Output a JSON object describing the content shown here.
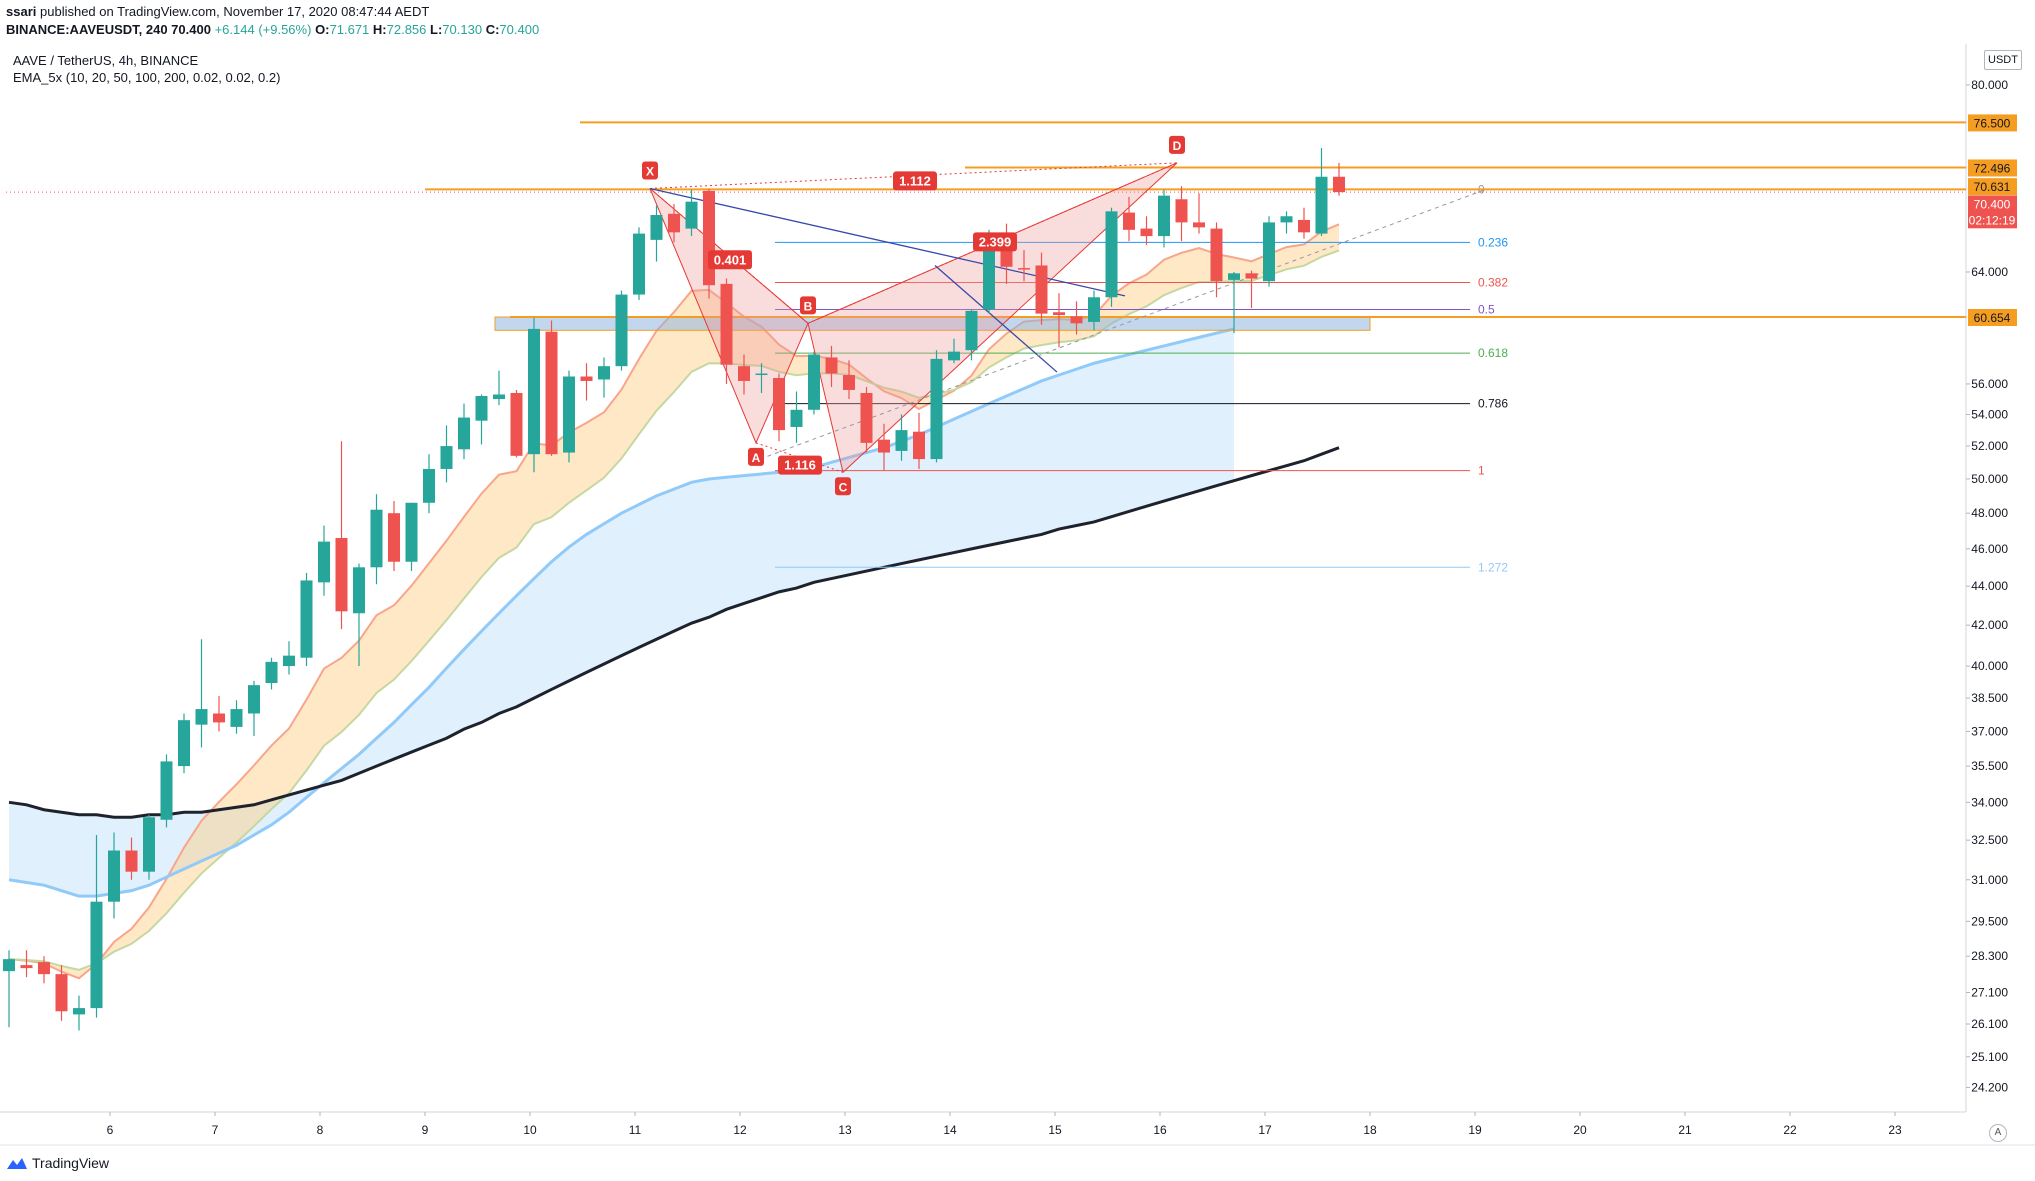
{
  "header": {
    "publisher": "ssari",
    "published_text": "published on TradingView.com, November 17, 2020 08:47:44 AEDT",
    "symbol_line": "BINANCE:AAVEUSDT, 240 70.400",
    "change": "+6.144 (+9.56%)",
    "ohlc": {
      "O": "71.671",
      "H": "72.856",
      "L": "70.130",
      "C": "70.400"
    }
  },
  "legend": {
    "title": "AAVE / TetherUS, 4h, BINANCE",
    "indicator": "EMA_5x (10, 20, 50, 100, 200, 0.02, 0.02, 0.2)"
  },
  "footer": {
    "brand": "TradingView"
  },
  "axis": {
    "unit": "USDT",
    "auto_label": "A"
  },
  "colors": {
    "up": "#26a69a",
    "down": "#ef5350",
    "orange": "#f59d21",
    "harmonic": "#e53935",
    "ema_dark": "#1e222d",
    "ema_blue": "#90caf9"
  },
  "chart_data": {
    "type": "candlestick",
    "title": "AAVE / TetherUS, 4h, BINANCE",
    "price_scale": "log",
    "ylim": [
      23.5,
      84
    ],
    "x_ticks": [
      "6",
      "7",
      "8",
      "9",
      "10",
      "11",
      "12",
      "13",
      "14",
      "15",
      "16",
      "17",
      "18",
      "19",
      "20",
      "21",
      "22",
      "23"
    ],
    "y_ticks": [
      "80.000",
      "64.000",
      "56.000",
      "54.000",
      "52.000",
      "50.000",
      "48.000",
      "46.000",
      "44.000",
      "42.000",
      "40.000",
      "38.500",
      "37.000",
      "35.500",
      "34.000",
      "32.500",
      "31.000",
      "29.500",
      "28.300",
      "27.100",
      "26.100",
      "25.100",
      "24.200"
    ],
    "price_labels": [
      {
        "value": "76.500",
        "color": "#f59d21"
      },
      {
        "value": "72.496",
        "color": "#f59d21"
      },
      {
        "value": "70.631",
        "color": "#f59d21"
      },
      {
        "value": "70.400",
        "color": "#ef5350"
      },
      {
        "value": "02:12:19",
        "color": "#ef5350"
      },
      {
        "value": "60.654",
        "color": "#f59d21"
      }
    ],
    "fib_levels": [
      {
        "label": "0",
        "price": 70.631,
        "color": "#9598a1"
      },
      {
        "label": "0.236",
        "price": 66.3,
        "color": "#2196f3"
      },
      {
        "label": "0.382",
        "price": 63.2,
        "color": "#ef5350"
      },
      {
        "label": "0.5",
        "price": 61.2,
        "color": "#7e57c2"
      },
      {
        "label": "0.618",
        "price": 58.1,
        "color": "#4caf50"
      },
      {
        "label": "0.786",
        "price": 54.7,
        "color": "#131722"
      },
      {
        "label": "1",
        "price": 50.5,
        "color": "#ef5350"
      },
      {
        "label": "1.272",
        "price": 45.0,
        "color": "#90caf9"
      }
    ],
    "harmonic": {
      "points": [
        {
          "label": "X",
          "price": 70.7
        },
        {
          "label": "A",
          "price": 52.2
        },
        {
          "label": "B",
          "price": 60.2
        },
        {
          "label": "C",
          "price": 50.4
        },
        {
          "label": "D",
          "price": 72.9
        }
      ],
      "ratios": [
        "0.401",
        "1.116",
        "2.399",
        "1.112"
      ]
    },
    "candles": [
      {
        "o": 27.8,
        "h": 28.5,
        "l": 26.0,
        "c": 28.2
      },
      {
        "o": 28.0,
        "h": 28.5,
        "l": 27.6,
        "c": 27.9
      },
      {
        "o": 28.1,
        "h": 28.3,
        "l": 27.4,
        "c": 27.7
      },
      {
        "o": 27.7,
        "h": 28.0,
        "l": 26.2,
        "c": 26.5
      },
      {
        "o": 26.4,
        "h": 27.0,
        "l": 25.9,
        "c": 26.6
      },
      {
        "o": 26.6,
        "h": 32.7,
        "l": 26.3,
        "c": 30.2
      },
      {
        "o": 30.2,
        "h": 32.8,
        "l": 29.6,
        "c": 32.1
      },
      {
        "o": 32.1,
        "h": 32.6,
        "l": 31.0,
        "c": 31.3
      },
      {
        "o": 31.3,
        "h": 33.5,
        "l": 31.0,
        "c": 33.4
      },
      {
        "o": 33.3,
        "h": 36.0,
        "l": 33.0,
        "c": 35.7
      },
      {
        "o": 35.5,
        "h": 37.8,
        "l": 35.2,
        "c": 37.5
      },
      {
        "o": 37.3,
        "h": 41.3,
        "l": 36.3,
        "c": 38.0
      },
      {
        "o": 37.8,
        "h": 38.6,
        "l": 37.0,
        "c": 37.4
      },
      {
        "o": 37.2,
        "h": 38.4,
        "l": 36.9,
        "c": 38.0
      },
      {
        "o": 37.8,
        "h": 39.3,
        "l": 36.8,
        "c": 39.1
      },
      {
        "o": 39.2,
        "h": 40.4,
        "l": 38.9,
        "c": 40.2
      },
      {
        "o": 40.0,
        "h": 41.2,
        "l": 39.6,
        "c": 40.5
      },
      {
        "o": 40.4,
        "h": 44.7,
        "l": 40.0,
        "c": 44.3
      },
      {
        "o": 44.2,
        "h": 47.3,
        "l": 43.5,
        "c": 46.4
      },
      {
        "o": 46.6,
        "h": 52.3,
        "l": 41.8,
        "c": 42.7
      },
      {
        "o": 42.6,
        "h": 45.2,
        "l": 40.0,
        "c": 45.0
      },
      {
        "o": 45.0,
        "h": 49.1,
        "l": 44.1,
        "c": 48.2
      },
      {
        "o": 48.0,
        "h": 48.7,
        "l": 44.8,
        "c": 45.3
      },
      {
        "o": 45.3,
        "h": 48.6,
        "l": 44.8,
        "c": 48.6
      },
      {
        "o": 48.6,
        "h": 51.5,
        "l": 48.0,
        "c": 50.6
      },
      {
        "o": 50.6,
        "h": 53.3,
        "l": 49.8,
        "c": 52.0
      },
      {
        "o": 51.8,
        "h": 54.7,
        "l": 51.2,
        "c": 53.8
      },
      {
        "o": 53.6,
        "h": 55.3,
        "l": 52.1,
        "c": 55.2
      },
      {
        "o": 55.0,
        "h": 56.9,
        "l": 54.6,
        "c": 55.3
      },
      {
        "o": 55.4,
        "h": 55.6,
        "l": 51.3,
        "c": 51.4
      },
      {
        "o": 51.5,
        "h": 60.6,
        "l": 50.4,
        "c": 59.8
      },
      {
        "o": 59.6,
        "h": 60.4,
        "l": 51.4,
        "c": 51.5
      },
      {
        "o": 51.6,
        "h": 56.9,
        "l": 51.0,
        "c": 56.5
      },
      {
        "o": 56.5,
        "h": 57.4,
        "l": 54.9,
        "c": 56.2
      },
      {
        "o": 56.3,
        "h": 57.8,
        "l": 55.1,
        "c": 57.2
      },
      {
        "o": 57.2,
        "h": 62.6,
        "l": 56.9,
        "c": 62.3
      },
      {
        "o": 62.3,
        "h": 67.5,
        "l": 61.9,
        "c": 67.0
      },
      {
        "o": 66.5,
        "h": 69.3,
        "l": 64.8,
        "c": 68.5
      },
      {
        "o": 68.6,
        "h": 69.4,
        "l": 66.3,
        "c": 67.1
      },
      {
        "o": 67.4,
        "h": 70.6,
        "l": 66.8,
        "c": 69.6
      },
      {
        "o": 70.5,
        "h": 70.7,
        "l": 62.0,
        "c": 63.0
      },
      {
        "o": 63.1,
        "h": 63.5,
        "l": 56.0,
        "c": 57.3
      },
      {
        "o": 57.2,
        "h": 58.0,
        "l": 55.3,
        "c": 56.2
      },
      {
        "o": 56.6,
        "h": 57.4,
        "l": 55.4,
        "c": 56.7
      },
      {
        "o": 56.4,
        "h": 56.7,
        "l": 52.3,
        "c": 53.0
      },
      {
        "o": 53.2,
        "h": 55.5,
        "l": 52.2,
        "c": 54.3
      },
      {
        "o": 54.3,
        "h": 58.2,
        "l": 54.0,
        "c": 58.0
      },
      {
        "o": 57.8,
        "h": 58.6,
        "l": 55.8,
        "c": 56.7
      },
      {
        "o": 56.6,
        "h": 57.6,
        "l": 55.0,
        "c": 55.6
      },
      {
        "o": 55.4,
        "h": 55.8,
        "l": 51.6,
        "c": 52.2
      },
      {
        "o": 52.4,
        "h": 53.4,
        "l": 50.5,
        "c": 51.6
      },
      {
        "o": 51.7,
        "h": 54.0,
        "l": 51.1,
        "c": 53.0
      },
      {
        "o": 52.9,
        "h": 54.1,
        "l": 50.6,
        "c": 51.2
      },
      {
        "o": 51.2,
        "h": 58.3,
        "l": 51.0,
        "c": 57.7
      },
      {
        "o": 57.6,
        "h": 59.1,
        "l": 57.4,
        "c": 58.2
      },
      {
        "o": 58.3,
        "h": 61.2,
        "l": 57.6,
        "c": 61.1
      },
      {
        "o": 61.2,
        "h": 67.3,
        "l": 60.9,
        "c": 66.5
      },
      {
        "o": 66.4,
        "h": 67.8,
        "l": 63.1,
        "c": 64.4
      },
      {
        "o": 64.3,
        "h": 65.7,
        "l": 63.3,
        "c": 64.2
      },
      {
        "o": 64.5,
        "h": 65.5,
        "l": 60.1,
        "c": 60.9
      },
      {
        "o": 61.0,
        "h": 62.4,
        "l": 58.5,
        "c": 60.8
      },
      {
        "o": 60.7,
        "h": 61.8,
        "l": 59.4,
        "c": 60.2
      },
      {
        "o": 60.3,
        "h": 62.6,
        "l": 59.7,
        "c": 62.1
      },
      {
        "o": 62.1,
        "h": 69.1,
        "l": 61.4,
        "c": 68.8
      },
      {
        "o": 68.7,
        "h": 70.0,
        "l": 66.4,
        "c": 67.3
      },
      {
        "o": 67.4,
        "h": 68.4,
        "l": 66.1,
        "c": 66.8
      },
      {
        "o": 66.8,
        "h": 70.6,
        "l": 65.9,
        "c": 70.1
      },
      {
        "o": 69.8,
        "h": 70.9,
        "l": 66.4,
        "c": 67.9
      },
      {
        "o": 67.9,
        "h": 70.3,
        "l": 67.0,
        "c": 67.5
      },
      {
        "o": 67.4,
        "h": 67.9,
        "l": 62.1,
        "c": 63.3
      },
      {
        "o": 63.4,
        "h": 64.0,
        "l": 59.5,
        "c": 63.9
      },
      {
        "o": 63.9,
        "h": 64.1,
        "l": 61.3,
        "c": 63.5
      },
      {
        "o": 63.3,
        "h": 68.4,
        "l": 62.9,
        "c": 67.9
      },
      {
        "o": 67.9,
        "h": 68.8,
        "l": 67.0,
        "c": 68.4
      },
      {
        "o": 68.1,
        "h": 69.1,
        "l": 66.6,
        "c": 67.1
      },
      {
        "o": 67.0,
        "h": 74.2,
        "l": 66.8,
        "c": 71.7
      },
      {
        "o": 71.7,
        "h": 72.9,
        "l": 70.1,
        "c": 70.4
      }
    ],
    "ema_dark": [
      34.0,
      33.9,
      33.7,
      33.6,
      33.5,
      33.5,
      33.4,
      33.4,
      33.5,
      33.5,
      33.6,
      33.6,
      33.7,
      33.8,
      33.9,
      34.1,
      34.3,
      34.5,
      34.7,
      34.9,
      35.2,
      35.5,
      35.8,
      36.1,
      36.4,
      36.7,
      37.1,
      37.4,
      37.8,
      38.1,
      38.5,
      38.9,
      39.3,
      39.7,
      40.1,
      40.5,
      40.9,
      41.3,
      41.7,
      42.1,
      42.4,
      42.8,
      43.1,
      43.4,
      43.7,
      43.9,
      44.2,
      44.4,
      44.6,
      44.8,
      45.0,
      45.2,
      45.4,
      45.6,
      45.8,
      46.0,
      46.2,
      46.4,
      46.6,
      46.8,
      47.1,
      47.3,
      47.5,
      47.8,
      48.1,
      48.4,
      48.7,
      49.0,
      49.3,
      49.6,
      49.9,
      50.2,
      50.5,
      50.8,
      51.1,
      51.5,
      51.9
    ],
    "ema_blue": [
      31.0,
      30.9,
      30.8,
      30.6,
      30.4,
      30.4,
      30.5,
      30.6,
      30.8,
      31.1,
      31.4,
      31.7,
      32.0,
      32.3,
      32.7,
      33.1,
      33.6,
      34.2,
      34.8,
      35.4,
      36.0,
      36.7,
      37.4,
      38.2,
      39.0,
      39.9,
      40.8,
      41.7,
      42.6,
      43.5,
      44.4,
      45.3,
      46.1,
      46.8,
      47.4,
      48.0,
      48.5,
      49.0,
      49.4,
      49.8,
      50.0,
      50.1,
      50.2,
      50.3,
      50.4,
      50.5,
      50.7,
      51.0,
      51.3,
      51.6,
      51.9,
      52.3,
      52.7,
      53.2,
      53.7,
      54.2,
      54.7,
      55.2,
      55.7,
      56.2,
      56.6,
      57.0,
      57.4,
      57.7,
      58.0,
      58.3,
      58.6,
      58.9,
      59.2,
      59.5,
      59.8
    ]
  }
}
